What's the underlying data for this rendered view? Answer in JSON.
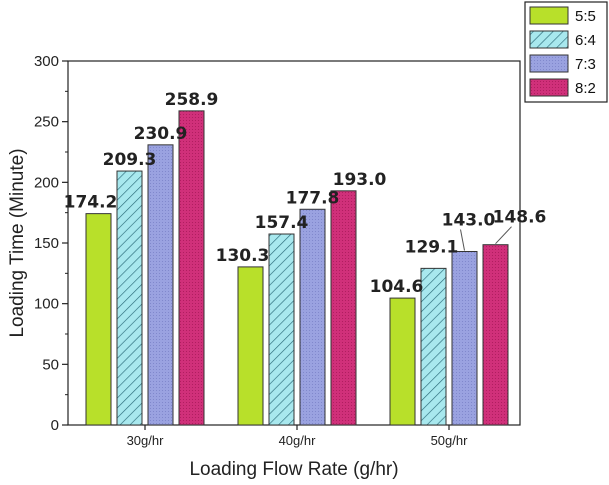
{
  "chart_data": {
    "type": "bar",
    "title": "",
    "xlabel": "Loading Flow Rate  (g/hr)",
    "ylabel": "Loading Time (Minute)",
    "ylim": [
      0,
      300
    ],
    "yticks": [
      0,
      50,
      100,
      150,
      200,
      250,
      300
    ],
    "ytick_labels": [
      "0",
      "50",
      "100",
      "150",
      "200",
      "250",
      "300"
    ],
    "categories": [
      "30g/hr",
      "40g/hr",
      "50g/hr"
    ],
    "series": [
      {
        "name": "5:5",
        "values": [
          174.2,
          130.3,
          104.6
        ],
        "labels": [
          "174.2",
          "130.3",
          "104.6"
        ],
        "color": "#b8e02a",
        "pattern": "solid"
      },
      {
        "name": "6:4",
        "values": [
          209.3,
          157.4,
          129.1
        ],
        "labels": [
          "209.3",
          "157.4",
          "129.1"
        ],
        "color": "#a8e8ee",
        "pattern": "hatch"
      },
      {
        "name": "7:3",
        "values": [
          230.9,
          177.8,
          143.0
        ],
        "labels": [
          "230.9",
          "177.8",
          "143.0"
        ],
        "color": "#9aa2e0",
        "pattern": "solid"
      },
      {
        "name": "8:2",
        "values": [
          258.9,
          193.0,
          148.6
        ],
        "labels": [
          "258.9",
          "193.0",
          "148.6"
        ],
        "color": "#d0307a",
        "pattern": "solid"
      }
    ],
    "legend_position": "top-right outside",
    "grid": false
  }
}
